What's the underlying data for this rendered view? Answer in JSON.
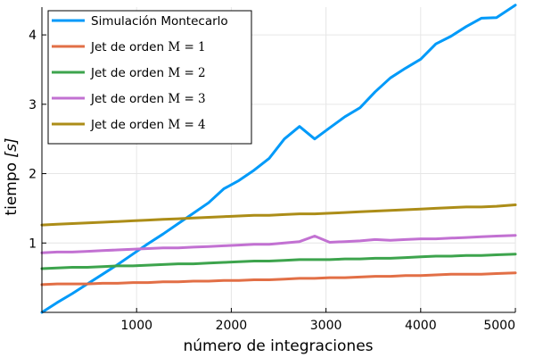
{
  "chart_data": {
    "type": "line",
    "xlabel": "número de integraciones",
    "ylabel_prefix": "tiempo ",
    "ylabel_unit": "[s]",
    "xlim": [
      0,
      5000
    ],
    "ylim": [
      0,
      4.4
    ],
    "xticks": [
      1000,
      2000,
      3000,
      4000,
      5000
    ],
    "yticks": [
      1,
      2,
      3,
      4
    ],
    "grid": true,
    "legend_position": "top-left",
    "x": [
      0,
      160,
      320,
      480,
      640,
      800,
      960,
      1120,
      1280,
      1440,
      1600,
      1760,
      1920,
      2080,
      2240,
      2400,
      2560,
      2720,
      2880,
      3040,
      3200,
      3360,
      3520,
      3680,
      3840,
      4000,
      4160,
      4320,
      4480,
      4640,
      4800,
      5000
    ],
    "series": [
      {
        "name": "Simulación Montecarlo",
        "legend_prefix": "Simulación Montecarlo",
        "legend_math": "",
        "color": "#009af9",
        "values": [
          0.0,
          0.14,
          0.27,
          0.41,
          0.55,
          0.69,
          0.84,
          0.99,
          1.13,
          1.28,
          1.43,
          1.58,
          1.78,
          1.9,
          2.05,
          2.22,
          2.5,
          2.68,
          2.5,
          2.66,
          2.82,
          2.95,
          3.18,
          3.38,
          3.52,
          3.65,
          3.87,
          3.98,
          4.12,
          4.24,
          4.25,
          4.43
        ]
      },
      {
        "name": "Jet de orden M = 1",
        "legend_prefix": "Jet de orden ",
        "legend_math": "M = 1",
        "color": "#e26f46",
        "values": [
          0.4,
          0.41,
          0.41,
          0.41,
          0.42,
          0.42,
          0.43,
          0.43,
          0.44,
          0.44,
          0.45,
          0.45,
          0.46,
          0.46,
          0.47,
          0.47,
          0.48,
          0.49,
          0.49,
          0.5,
          0.5,
          0.51,
          0.52,
          0.52,
          0.53,
          0.53,
          0.54,
          0.55,
          0.55,
          0.55,
          0.56,
          0.57
        ]
      },
      {
        "name": "Jet de orden M = 2",
        "legend_prefix": "Jet de orden ",
        "legend_math": "M = 2",
        "color": "#3da44d",
        "values": [
          0.63,
          0.64,
          0.65,
          0.65,
          0.66,
          0.67,
          0.67,
          0.68,
          0.69,
          0.7,
          0.7,
          0.71,
          0.72,
          0.73,
          0.74,
          0.74,
          0.75,
          0.76,
          0.76,
          0.76,
          0.77,
          0.77,
          0.78,
          0.78,
          0.79,
          0.8,
          0.81,
          0.81,
          0.82,
          0.82,
          0.83,
          0.84
        ]
      },
      {
        "name": "Jet de orden M = 3",
        "legend_prefix": "Jet de orden ",
        "legend_math": "M = 3",
        "color": "#c271d2",
        "values": [
          0.86,
          0.87,
          0.87,
          0.88,
          0.89,
          0.9,
          0.91,
          0.92,
          0.93,
          0.93,
          0.94,
          0.95,
          0.96,
          0.97,
          0.98,
          0.98,
          1.0,
          1.02,
          1.1,
          1.01,
          1.02,
          1.03,
          1.05,
          1.04,
          1.05,
          1.06,
          1.06,
          1.07,
          1.08,
          1.09,
          1.1,
          1.11
        ]
      },
      {
        "name": "Jet de orden M = 4",
        "legend_prefix": "Jet de orden ",
        "legend_math": "M = 4",
        "color": "#ac8d18",
        "values": [
          1.26,
          1.27,
          1.28,
          1.29,
          1.3,
          1.31,
          1.32,
          1.33,
          1.34,
          1.35,
          1.36,
          1.37,
          1.38,
          1.39,
          1.4,
          1.4,
          1.41,
          1.42,
          1.42,
          1.43,
          1.44,
          1.45,
          1.46,
          1.47,
          1.48,
          1.49,
          1.5,
          1.51,
          1.52,
          1.52,
          1.53,
          1.55
        ]
      }
    ]
  }
}
